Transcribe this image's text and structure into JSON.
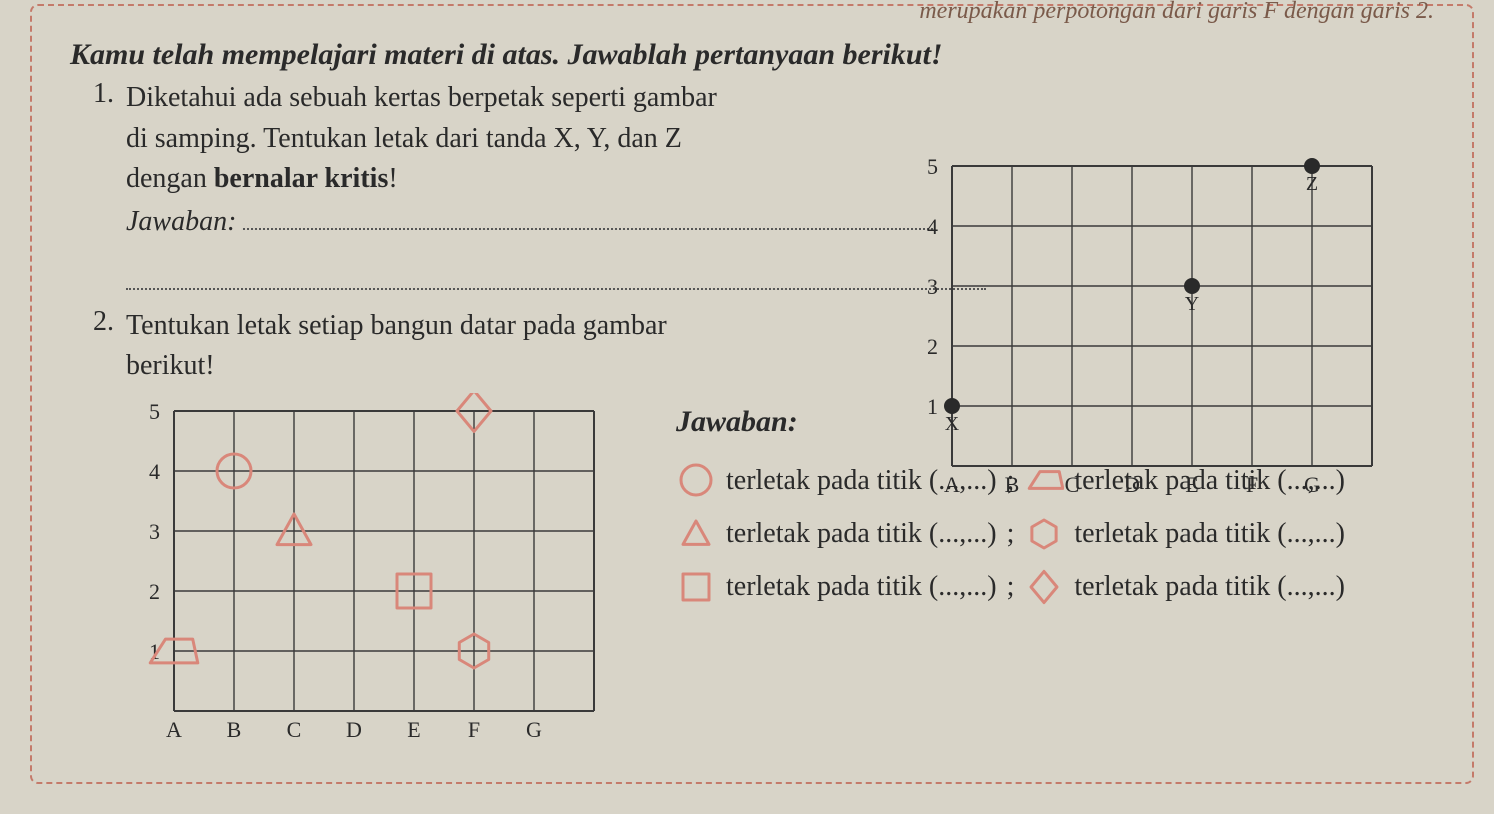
{
  "colors": {
    "paper_bg": "#d8d4c8",
    "dashed_border": "#c47a6a",
    "text": "#2a2a2a",
    "grid_line": "#3a3a3a",
    "shape_stroke": "#d9877a",
    "point_fill": "#2a2a2a"
  },
  "top_fragment": "merupakan perpotongan dari garis F dengan garis 2.",
  "intro": "Kamu telah mempelajari materi di atas. Jawablah pertanyaan berikut!",
  "q1": {
    "number": "1.",
    "text_line1": "Diketahui ada sebuah kertas berpetak seperti gambar",
    "text_line2": "di samping. Tentukan letak dari tanda X, Y, dan Z",
    "text_line3": "dengan",
    "text_line3_bold": "bernalar kritis",
    "text_line3_end": "!",
    "jawaban_label": "Jawaban:"
  },
  "grid1": {
    "cell": 60,
    "cols": 7,
    "rows": 5,
    "x_labels": [
      "A",
      "B",
      "C",
      "D",
      "E",
      "F",
      "G"
    ],
    "y_labels": [
      "1",
      "2",
      "3",
      "4",
      "5"
    ],
    "label_fontsize": 22,
    "points": [
      {
        "name": "X",
        "col": "A",
        "row": 1,
        "label": "X",
        "label_dy": 18
      },
      {
        "name": "Y",
        "col": "E",
        "row": 3,
        "label": "Y",
        "label_dy": 18
      },
      {
        "name": "Z",
        "col": "G",
        "row": 5,
        "label": "Z",
        "label_dy": 18
      }
    ],
    "point_radius": 8
  },
  "q2": {
    "number": "2.",
    "text_line1": "Tentukan letak setiap bangun datar pada gambar",
    "text_line2": "berikut!",
    "jawaban_label": "Jawaban:",
    "answer_phrase": "terletak pada titik (...,...)",
    "sep": ";"
  },
  "grid2": {
    "cell": 60,
    "cols": 7,
    "rows": 5,
    "x_labels": [
      "A",
      "B",
      "C",
      "D",
      "E",
      "F",
      "G"
    ],
    "y_labels": [
      "1",
      "2",
      "3",
      "4",
      "5"
    ],
    "label_fontsize": 22,
    "shapes": [
      {
        "type": "circle",
        "col": "B",
        "row": 4
      },
      {
        "type": "triangle",
        "col": "C",
        "row": 3
      },
      {
        "type": "square",
        "col": "E",
        "row": 2
      },
      {
        "type": "trapezoid",
        "col": "A",
        "row": 1
      },
      {
        "type": "hexagon",
        "col": "F",
        "row": 1
      },
      {
        "type": "diamond",
        "col": "F",
        "row": 5
      }
    ],
    "shape_size": 34,
    "shape_stroke_width": 3
  },
  "answer_icons": {
    "row1_left": "circle",
    "row1_right": "trapezoid",
    "row2_left": "triangle",
    "row2_right": "hexagon",
    "row3_left": "square",
    "row3_right": "diamond"
  }
}
